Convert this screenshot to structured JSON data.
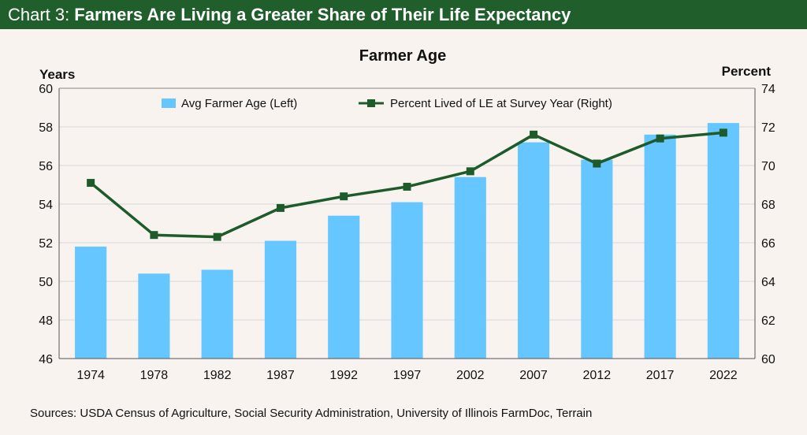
{
  "header": {
    "prefix": "Chart 3:",
    "title": "Farmers Are Living a Greater Share of Their Life Expectancy"
  },
  "source": "Sources: USDA Census of Agriculture, Social Security Administration, University of Illinois FarmDoc, Terrain",
  "colors": {
    "header_bg": "#205f2c",
    "bar": "#66c6ff",
    "line": "#1e5b2b",
    "grid": "#d9d9d9",
    "background": "#f8f3ee"
  },
  "chart_data": {
    "type": "bar+line",
    "title": "Farmer Age",
    "ylabel_left": "Years",
    "ylabel_right": "Percent",
    "categories": [
      "1974",
      "1978",
      "1982",
      "1987",
      "1992",
      "1997",
      "2002",
      "2007",
      "2012",
      "2017",
      "2022"
    ],
    "ylim_left": [
      46,
      60
    ],
    "yticks_left": [
      "46",
      "48",
      "50",
      "52",
      "54",
      "56",
      "58",
      "60"
    ],
    "ylim_right": [
      60,
      74
    ],
    "yticks_right": [
      "60",
      "62",
      "64",
      "66",
      "68",
      "70",
      "72",
      "74"
    ],
    "grid": true,
    "legend_position": "top-center",
    "series": [
      {
        "name": "Avg Farmer Age (Left)",
        "kind": "bar",
        "axis": "left",
        "values": [
          51.8,
          50.4,
          50.6,
          52.1,
          53.4,
          54.1,
          55.4,
          57.2,
          56.3,
          57.6,
          58.2
        ]
      },
      {
        "name": "Percent Lived of LE at Survey Year (Right)",
        "kind": "line",
        "axis": "right",
        "values": [
          69.1,
          66.4,
          66.3,
          67.8,
          68.4,
          68.9,
          69.7,
          71.6,
          70.1,
          71.4,
          71.7
        ]
      }
    ]
  }
}
